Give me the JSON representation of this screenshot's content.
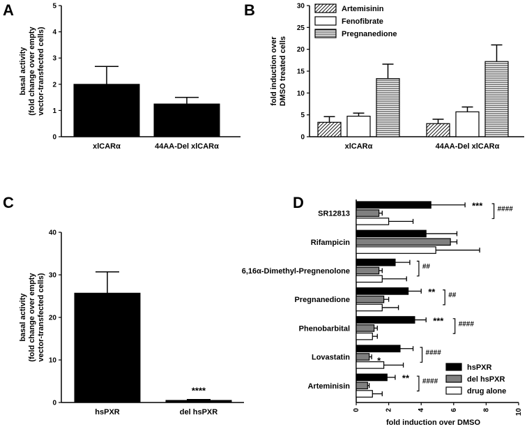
{
  "panels": {
    "A": {
      "label": "A"
    },
    "B": {
      "label": "B"
    },
    "C": {
      "label": "C"
    },
    "D": {
      "label": "D"
    }
  },
  "colors": {
    "black": "#000000",
    "grey": "#808080",
    "white": "#ffffff"
  },
  "chart_data": [
    {
      "id": "A",
      "type": "bar",
      "ylabel": [
        "basal activity",
        "(fold change over empty",
        "vector-transfected cells)"
      ],
      "categories": [
        "xlCARα",
        "44AA-Del xlCARα"
      ],
      "values": [
        2.0,
        1.25
      ],
      "errors": [
        0.68,
        0.25
      ],
      "ylim": [
        0,
        5
      ],
      "yticks": [
        0,
        1,
        2,
        3,
        4,
        5
      ],
      "fill": "#000000"
    },
    {
      "id": "B",
      "type": "bar",
      "ylabel": [
        "fold induction over",
        "DMSO treated cells"
      ],
      "categories": [
        "xlCARα",
        "44AA-Del xlCARα"
      ],
      "series": [
        {
          "name": "Artemisinin",
          "pattern": "diagonal",
          "values": [
            3.3,
            3.0
          ],
          "errors": [
            1.3,
            1.0
          ]
        },
        {
          "name": "Fenofibrate",
          "pattern": "open",
          "values": [
            4.7,
            5.7
          ],
          "errors": [
            0.7,
            1.1
          ]
        },
        {
          "name": "Pregnanedione",
          "pattern": "horizontal",
          "values": [
            13.3,
            17.2
          ],
          "errors": [
            3.3,
            3.8
          ]
        }
      ],
      "ylim": [
        0,
        30
      ],
      "yticks": [
        0,
        5,
        10,
        15,
        20,
        25,
        30
      ],
      "legend": "top-left"
    },
    {
      "id": "C",
      "type": "bar",
      "ylabel": [
        "basal activity",
        "(fold change over empty",
        "vector-transfected cells)"
      ],
      "categories": [
        "hsPXR",
        "del hsPXR"
      ],
      "values": [
        25.7,
        0.5
      ],
      "errors": [
        5.0,
        0.2
      ],
      "ylim": [
        0,
        40
      ],
      "yticks": [
        0,
        10,
        20,
        30,
        40
      ],
      "annotations": [
        "",
        "****"
      ],
      "fill": "#000000"
    },
    {
      "id": "D",
      "type": "bar",
      "orientation": "horizontal",
      "xlabel": "fold induction over DMSO",
      "xlim": [
        0,
        10
      ],
      "xticks": [
        0,
        2,
        4,
        6,
        8,
        10
      ],
      "categories": [
        "SR12813",
        "Rifampicin",
        "6,16α-Dimethyl-Pregnenolone",
        "Pregnanedione",
        "Phenobarbital",
        "Lovastatin",
        "Arteminisin"
      ],
      "series": [
        {
          "name": "hsPXR",
          "fill": "#000000",
          "values": [
            4.6,
            4.3,
            2.4,
            3.2,
            3.6,
            2.7,
            1.9
          ],
          "errors": [
            2.1,
            1.9,
            0.9,
            0.8,
            0.7,
            0.8,
            0.5
          ]
        },
        {
          "name": "del hsPXR",
          "fill": "#808080",
          "values": [
            1.4,
            5.8,
            1.4,
            1.7,
            1.1,
            0.8,
            0.7
          ],
          "errors": [
            0.2,
            0.4,
            0.2,
            0.3,
            0.2,
            0.15,
            0.1
          ]
        },
        {
          "name": "drug alone",
          "fill": "#ffffff",
          "values": [
            2.0,
            4.9,
            1.6,
            1.6,
            1.0,
            1.7,
            1.0
          ],
          "errors": [
            1.5,
            2.7,
            1.5,
            1.0,
            0.3,
            1.2,
            0.6
          ]
        }
      ],
      "stars": [
        "***",
        "",
        "",
        "**",
        "***",
        "",
        "**"
      ],
      "lovastatin_del_star": "*",
      "hashes": [
        "####",
        "",
        "##",
        "##",
        "####",
        "####",
        "####"
      ],
      "legend": "bottom-right"
    }
  ]
}
